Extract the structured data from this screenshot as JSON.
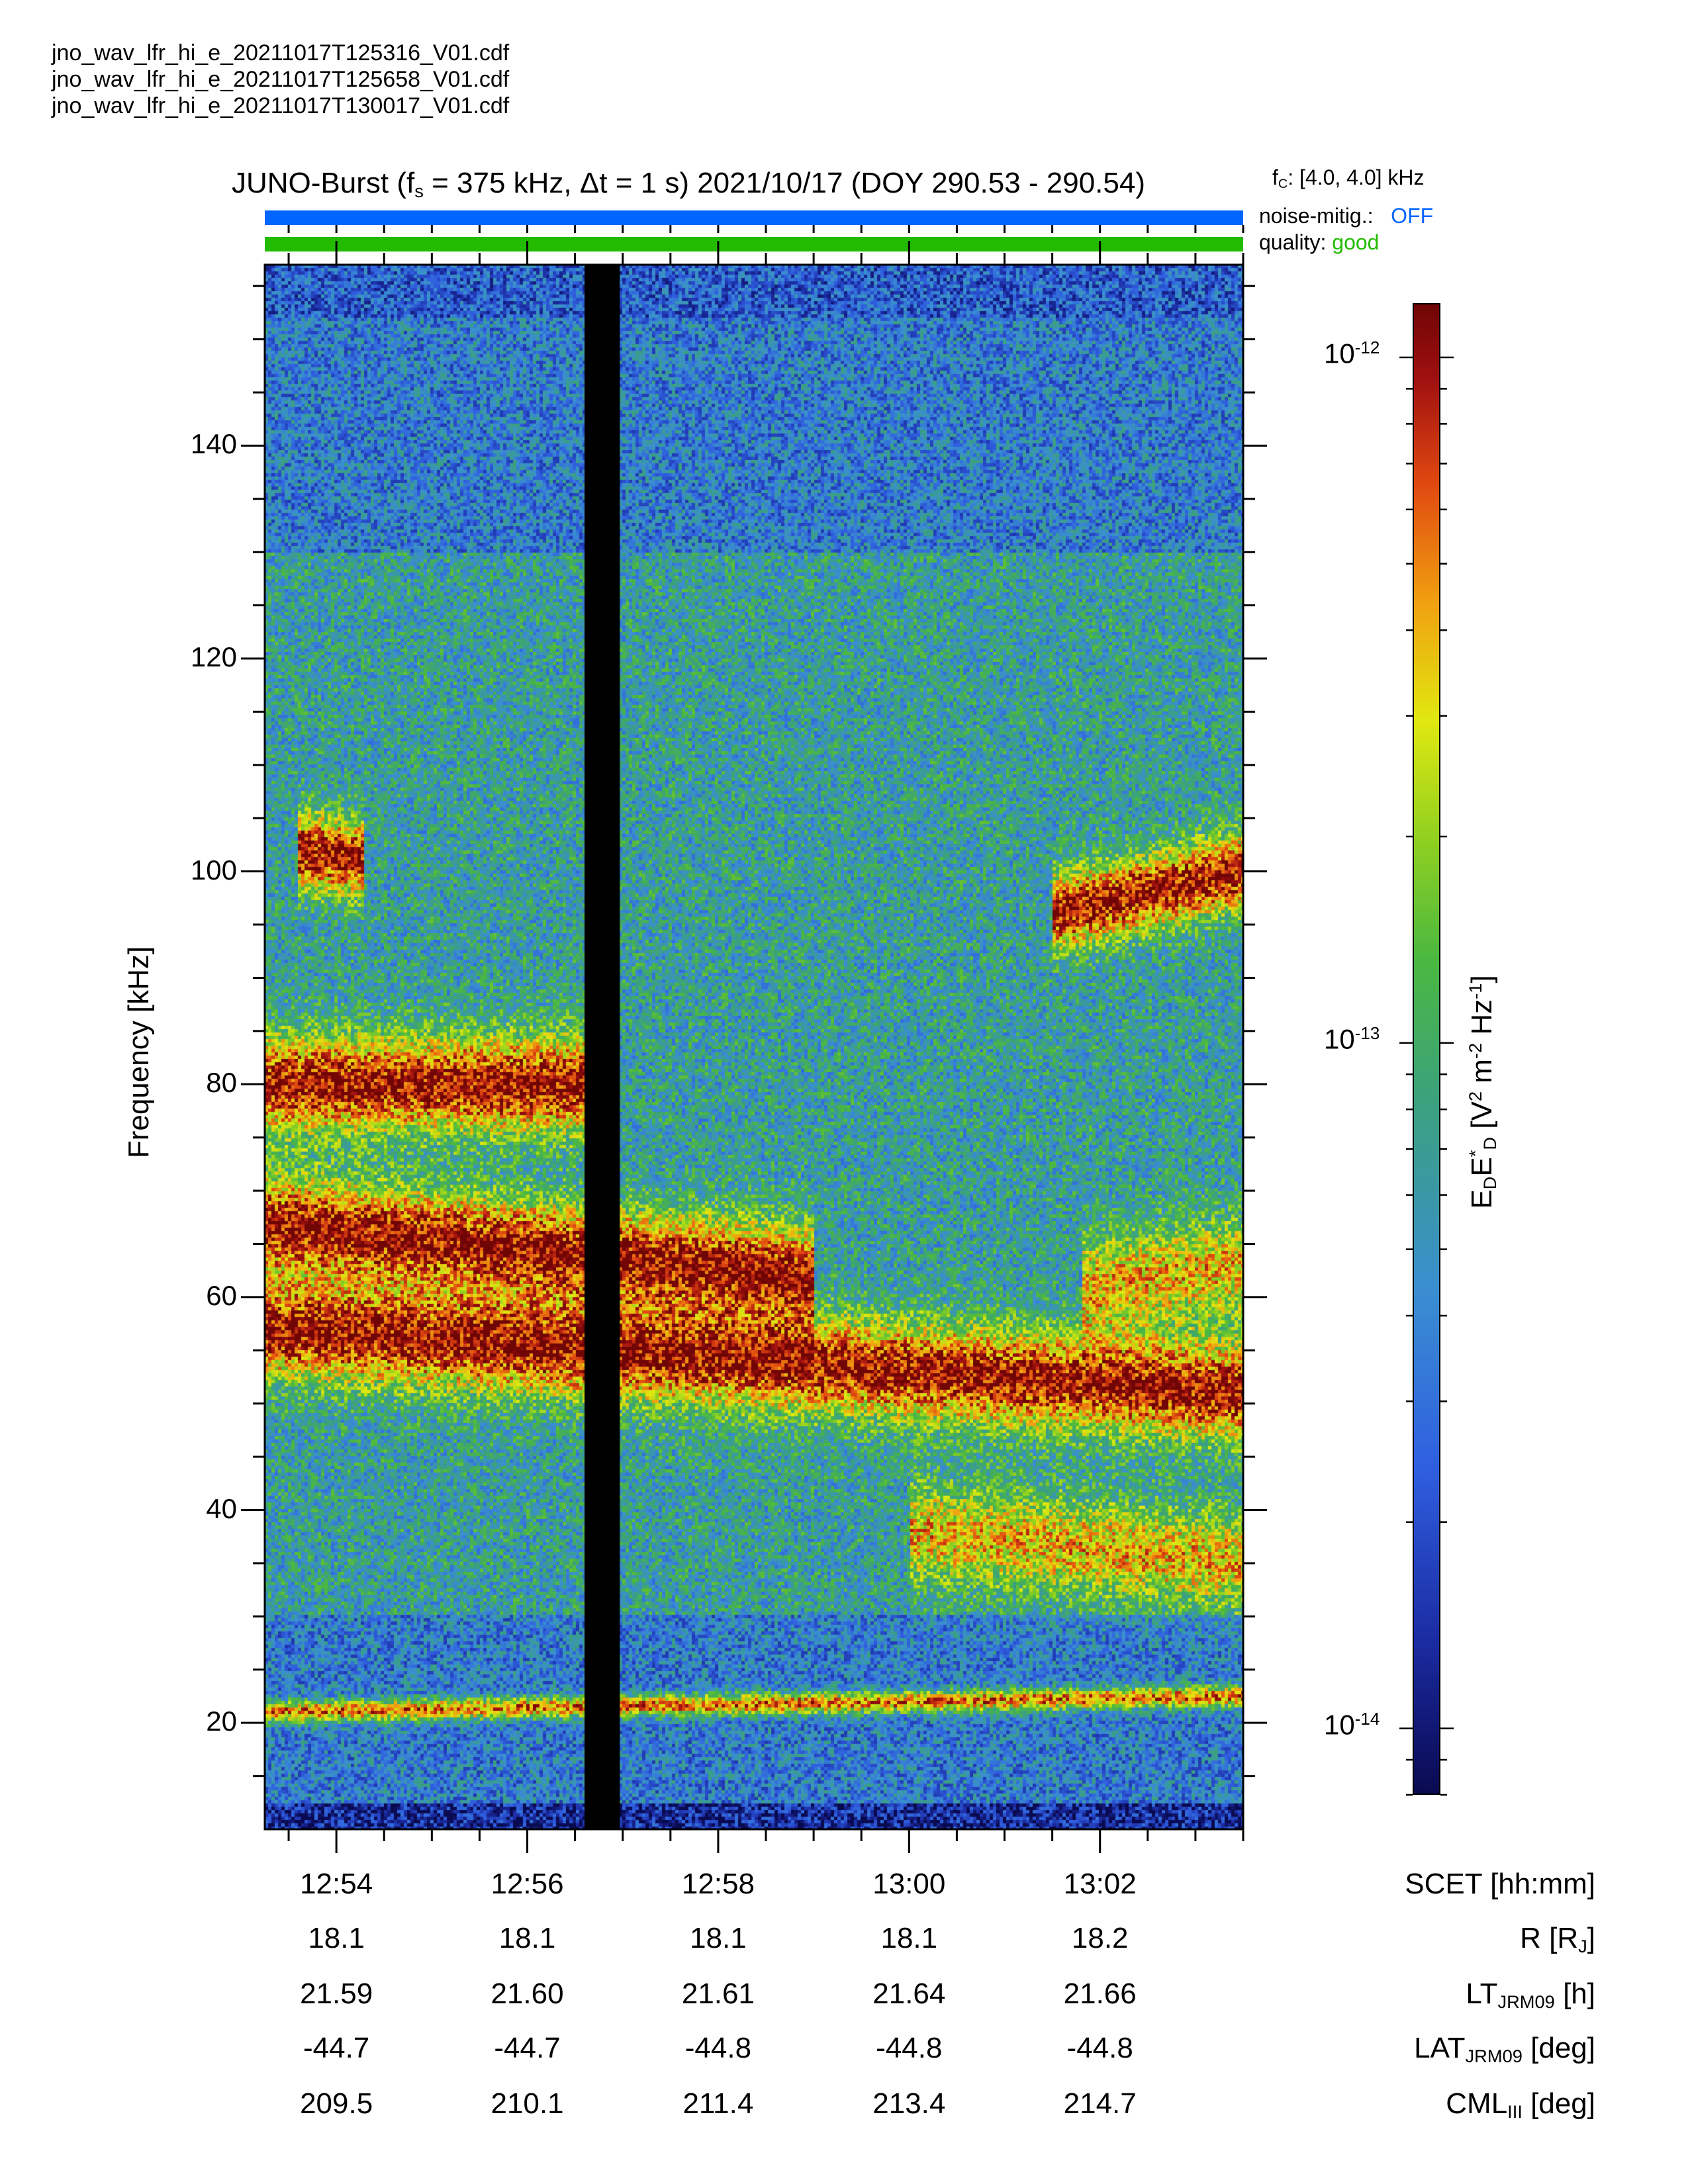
{
  "files": [
    "jno_wav_lfr_hi_e_20211017T125316_V01.cdf",
    "jno_wav_lfr_hi_e_20211017T125658_V01.cdf",
    "jno_wav_lfr_hi_e_20211017T130017_V01.cdf"
  ],
  "header": {
    "title_prefix": "JUNO-Burst (f",
    "title_sub": "s",
    "title_rest": " = 375 kHz, Δt = 1 s)  2021/10/17 (DOY 290.53 - 290.54)",
    "fc_label": "f",
    "fc_sub": "C",
    "fc_value": ": [4.0, 4.0] kHz",
    "noise_label": "noise-mitig.:",
    "noise_value": "OFF",
    "quality_label": "quality:",
    "quality_value": "good"
  },
  "colors": {
    "noise_bar": "#0066ff",
    "quality_bar": "#22bb00",
    "noise_value": "#0066ff",
    "quality_value": "#22bb00",
    "data_gap": "#000000"
  },
  "chart_data": {
    "type": "heatmap",
    "ylabel": "Frequency [kHz]",
    "ylim": [
      10,
      157
    ],
    "yticks": [
      20,
      40,
      60,
      80,
      100,
      120,
      140
    ],
    "xlabel": "SCET [hh:mm]",
    "xlim_minutes": [
      53.25,
      63.5
    ],
    "xticks": [
      {
        "minute": 54,
        "scet": "12:54",
        "r": "18.1",
        "lt": "21.59",
        "lat": "-44.7",
        "cml": "209.5"
      },
      {
        "minute": 56,
        "scet": "12:56",
        "r": "18.1",
        "lt": "21.60",
        "lat": "-44.7",
        "cml": "210.1"
      },
      {
        "minute": 58,
        "scet": "12:58",
        "r": "18.1",
        "lt": "21.61",
        "lat": "-44.8",
        "cml": "211.4"
      },
      {
        "minute": 60,
        "scet": "13:00",
        "r": "18.1",
        "lt": "21.64",
        "lat": "-44.8",
        "cml": "213.4"
      },
      {
        "minute": 62,
        "scet": "13:02",
        "r": "18.2",
        "lt": "21.66",
        "lat": "-44.8",
        "cml": "214.7"
      }
    ],
    "row_labels": {
      "scet": "SCET [hh:mm]",
      "r": "R [R_J]",
      "lt": "LT_JRM09 [h]",
      "lat": "LAT_JRM09 [deg]",
      "cml": "CML_III [deg]"
    },
    "data_gap_minutes": [
      56.6,
      56.97
    ],
    "colorbar": {
      "label": "E_D E_D* [V^2 m^-2 Hz^-1]",
      "scale": "log",
      "range": [
        8e-15,
        1.2e-12
      ],
      "ticks": [
        {
          "value": 1e-12,
          "base": "10",
          "exp": "-12"
        },
        {
          "value": 1e-13,
          "base": "10",
          "exp": "-13"
        },
        {
          "value": 1e-14,
          "base": "10",
          "exp": "-14"
        }
      ]
    },
    "emission_bands": [
      {
        "name": "fundamental-lower",
        "t_minutes": [
          53.25,
          63.5
        ],
        "f_start_khz": 57,
        "f_end_khz": 51,
        "intensity": "high"
      },
      {
        "name": "fundamental-upper",
        "t_minutes": [
          53.25,
          59.0
        ],
        "f_start_khz": 67,
        "f_end_khz": 62,
        "intensity": "high"
      },
      {
        "name": "upper-return",
        "t_minutes": [
          61.8,
          63.5
        ],
        "f_start_khz": 61,
        "f_end_khz": 63,
        "intensity": "medium"
      },
      {
        "name": "harmonic-80",
        "t_minutes": [
          53.25,
          56.6
        ],
        "f_start_khz": 80,
        "f_end_khz": 80,
        "intensity": "high"
      },
      {
        "name": "harmonic-100-early",
        "t_minutes": [
          53.6,
          54.3
        ],
        "f_start_khz": 102,
        "f_end_khz": 101,
        "intensity": "high"
      },
      {
        "name": "harmonic-100-late",
        "t_minutes": [
          61.5,
          63.5
        ],
        "f_start_khz": 96,
        "f_end_khz": 100,
        "intensity": "high"
      },
      {
        "name": "lower-35",
        "t_minutes": [
          60.0,
          63.5
        ],
        "f_start_khz": 38,
        "f_end_khz": 35,
        "intensity": "medium"
      },
      {
        "name": "narrow-21",
        "t_minutes": [
          53.25,
          63.5
        ],
        "f_start_khz": 21,
        "f_end_khz": 22.5,
        "intensity": "high"
      }
    ]
  }
}
